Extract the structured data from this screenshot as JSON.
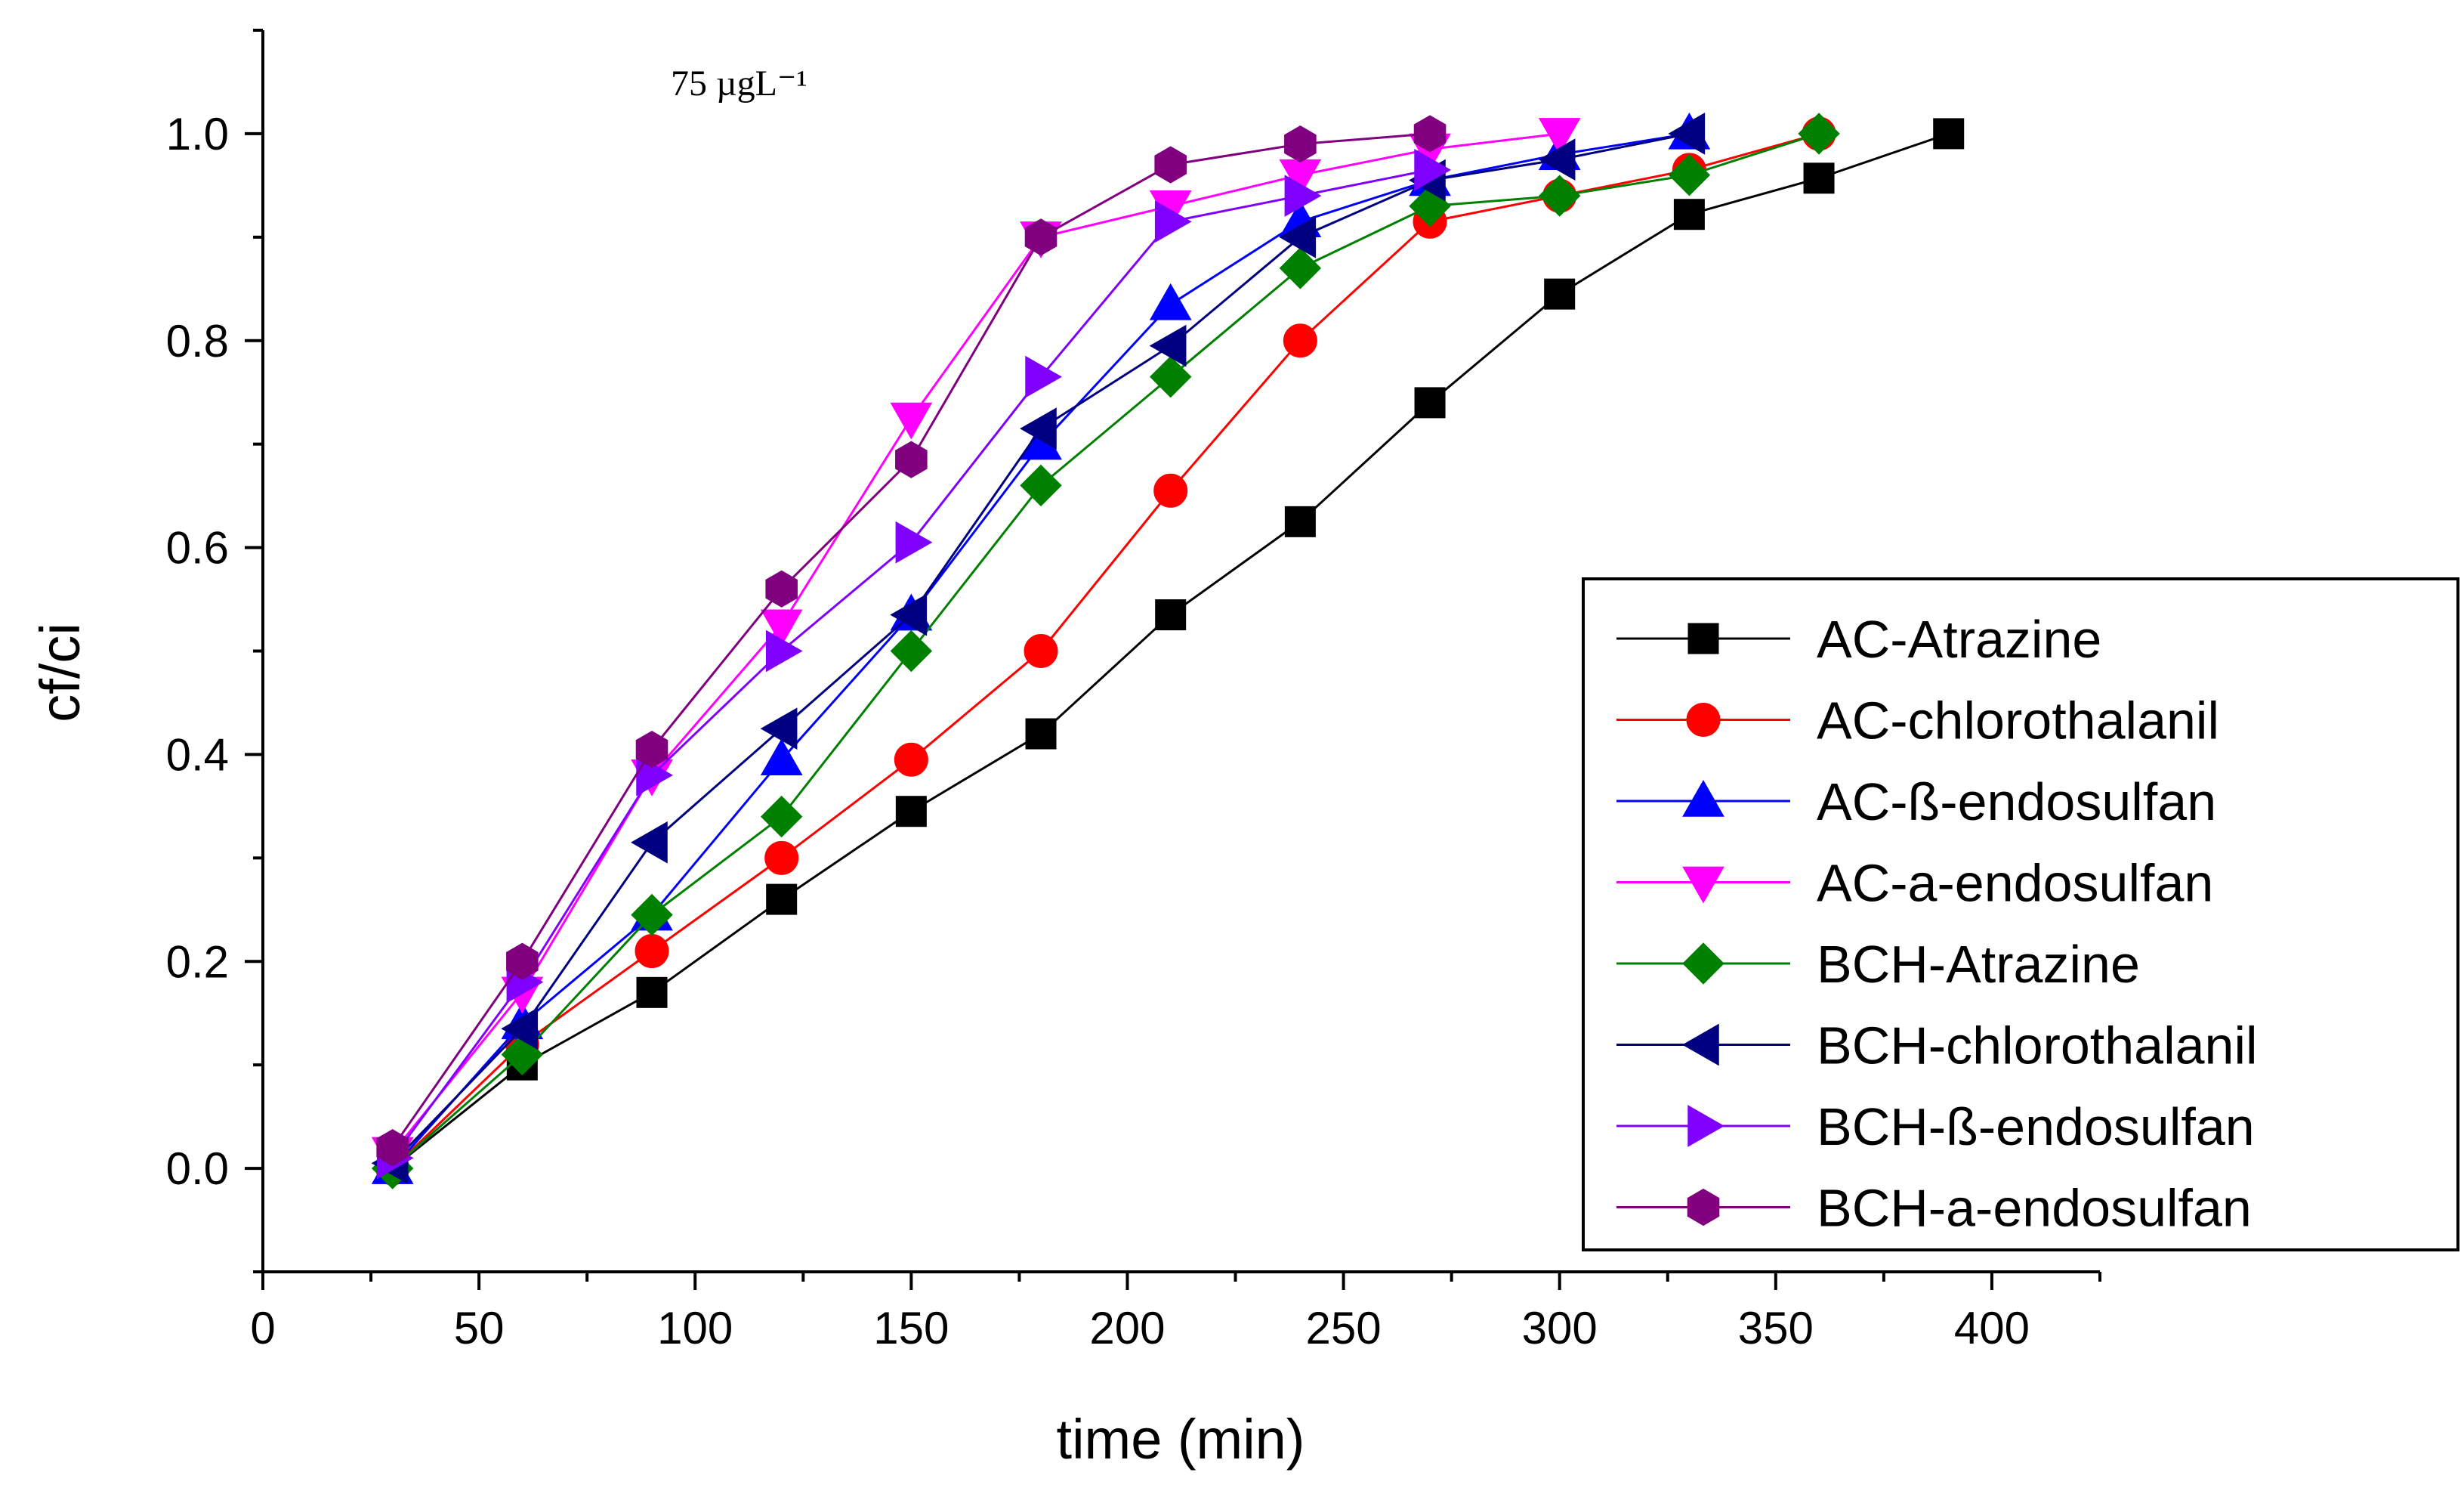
{
  "chart_data": {
    "type": "line",
    "title": "",
    "annotation": "75 µgL⁻¹",
    "xlabel": "time (min)",
    "ylabel": "cf/ci",
    "xlim": [
      0,
      425
    ],
    "ylim": [
      -0.1,
      1.1
    ],
    "xticks": [
      "0",
      "50",
      "100",
      "150",
      "200",
      "250",
      "300",
      "350",
      "400"
    ],
    "yticks": [
      "0.0",
      "0.2",
      "0.4",
      "0.6",
      "0.8",
      "1.0"
    ],
    "legend_position": "right",
    "grid": false,
    "series": [
      {
        "name": "AC-Atrazine",
        "color": "#000000",
        "marker": "square",
        "x": [
          30,
          60,
          90,
          120,
          150,
          180,
          210,
          240,
          270,
          300,
          330,
          360,
          390
        ],
        "y": [
          0.0,
          0.1,
          0.17,
          0.26,
          0.345,
          0.42,
          0.535,
          0.625,
          0.74,
          0.845,
          0.922,
          0.957,
          1.0
        ]
      },
      {
        "name": "AC-chlorothalanil",
        "color": "#ff0000",
        "marker": "circle",
        "x": [
          30,
          60,
          90,
          120,
          150,
          180,
          210,
          240,
          270,
          300,
          330,
          360
        ],
        "y": [
          0.0,
          0.12,
          0.21,
          0.3,
          0.395,
          0.5,
          0.655,
          0.8,
          0.915,
          0.94,
          0.965,
          1.0
        ]
      },
      {
        "name": "AC-ß-endosulfan",
        "color": "#0000ff",
        "marker": "triangle-up",
        "x": [
          30,
          60,
          90,
          120,
          150,
          180,
          210,
          240,
          270,
          300,
          330
        ],
        "y": [
          0.0,
          0.14,
          0.245,
          0.395,
          0.535,
          0.7,
          0.835,
          0.915,
          0.955,
          0.98,
          1.0
        ]
      },
      {
        "name": "AC-a-endosulfan",
        "color": "#ff00ff",
        "marker": "triangle-down",
        "x": [
          30,
          60,
          90,
          120,
          150,
          180,
          210,
          240,
          270,
          300
        ],
        "y": [
          0.015,
          0.17,
          0.38,
          0.525,
          0.725,
          0.9,
          0.93,
          0.96,
          0.985,
          1.0
        ]
      },
      {
        "name": "BCH-Atrazine",
        "color": "#008000",
        "marker": "diamond",
        "x": [
          30,
          60,
          90,
          120,
          150,
          180,
          210,
          240,
          270,
          300,
          330,
          360
        ],
        "y": [
          0.0,
          0.11,
          0.245,
          0.34,
          0.5,
          0.66,
          0.765,
          0.87,
          0.93,
          0.94,
          0.96,
          1.0
        ]
      },
      {
        "name": "BCH-chlorothalanil",
        "color": "#000080",
        "marker": "triangle-left",
        "x": [
          30,
          60,
          90,
          120,
          150,
          180,
          210,
          240,
          270,
          300,
          330
        ],
        "y": [
          0.005,
          0.135,
          0.315,
          0.425,
          0.535,
          0.715,
          0.795,
          0.9,
          0.955,
          0.975,
          1.0
        ]
      },
      {
        "name": "BCH-ß-endosulfan",
        "color": "#8000ff",
        "marker": "triangle-right",
        "x": [
          30,
          60,
          90,
          120,
          150,
          180,
          210,
          240,
          270
        ],
        "y": [
          0.01,
          0.18,
          0.38,
          0.5,
          0.605,
          0.765,
          0.915,
          0.94,
          0.965
        ]
      },
      {
        "name": "BCH-a-endosulfan",
        "color": "#800080",
        "marker": "hexagon",
        "x": [
          30,
          60,
          90,
          120,
          150,
          180,
          210,
          240,
          270
        ],
        "y": [
          0.02,
          0.2,
          0.405,
          0.56,
          0.685,
          0.9,
          0.97,
          0.99,
          1.0
        ]
      }
    ]
  }
}
